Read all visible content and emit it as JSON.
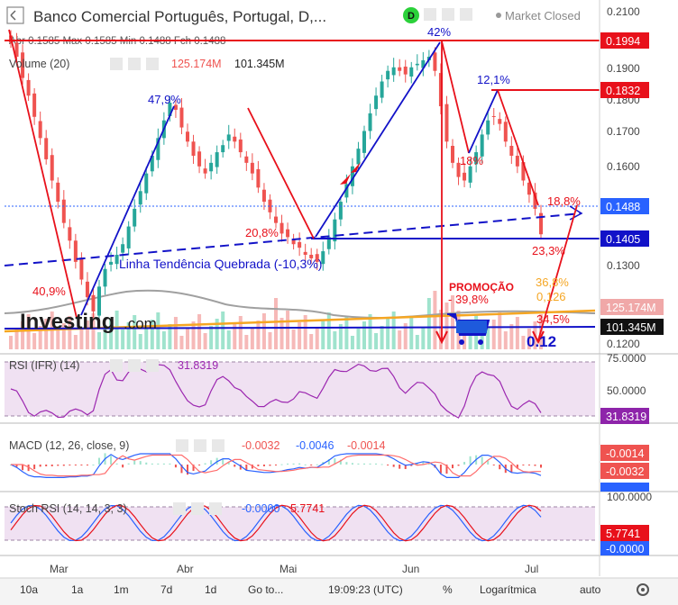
{
  "header": {
    "title": "Banco Comercial Português, Portugal, D,...",
    "interval_badge": "D",
    "market_status": "Market Closed",
    "ohlc": "Abr 0.1585  Max 0.1585  Min 0.1488  Fch 0.1488"
  },
  "volume_panel": {
    "label": "Volume (20)",
    "value1": "125.174M",
    "value2": "101.345M",
    "tag1": "125.174M",
    "tag2": "101.345M"
  },
  "rsi_panel": {
    "label": "RSI (IFR) (14)",
    "value": "31.8319",
    "tag": "31.8319",
    "ticks": [
      "75.0000",
      "50.0000"
    ]
  },
  "macd_panel": {
    "label": "MACD (12, 26, close, 9)",
    "v1": "-0.0032",
    "v2": "-0.0046",
    "v3": "-0.0014",
    "tags": [
      "-0.0014",
      "-0.0032"
    ]
  },
  "stoch_panel": {
    "label": "Stoch RSI (14, 14, 3, 3)",
    "v1": "-0.0000",
    "v2": "5.7741",
    "tags": [
      "100.0000",
      "5.7741",
      "-0.0000"
    ]
  },
  "price_axis": {
    "ticks": [
      "0.2100",
      "0.2000",
      "0.1900",
      "0.1800",
      "0.1700",
      "0.1600",
      "0.1400",
      "0.1300",
      "0.1200"
    ],
    "tags": [
      {
        "text": "0.1994",
        "color": "#e8111b"
      },
      {
        "text": "0.1832",
        "color": "#e8111b"
      },
      {
        "text": "0.1488",
        "color": "#2962ff"
      },
      {
        "text": "0.1405",
        "color": "#1212c8"
      }
    ]
  },
  "time_axis": {
    "labels": [
      "Mar",
      "Abr",
      "Mai",
      "Jun",
      "Jul"
    ]
  },
  "annotations": {
    "pct_409": "40,9%",
    "pct_479": "47,9%",
    "pct_208": "20,8%",
    "pct_42": "42%",
    "pct_121": "12,1%",
    "pct_18": "18%",
    "pct_188": "18,8%",
    "pct_233": "23,3%",
    "pct_368": "36,8%",
    "val_0126": "0,126",
    "pct_345": "34,5%",
    "promo1": "PROMOÇÃO",
    "promo2": "- 39,8%",
    "trend": "Linha Tendência Quebrada (-10,3%)",
    "target": "0.12",
    "logo_a": "Investing",
    "logo_b": ".com"
  },
  "toolbar": {
    "ranges": [
      "10a",
      "1a",
      "1m",
      "7d",
      "1d"
    ],
    "goto": "Go to...",
    "time": "19:09:23 (UTC)",
    "percent": "%",
    "log": "Logarítmica",
    "auto": "auto"
  },
  "colors": {
    "up": "#26a69a",
    "down": "#ef5350",
    "annotation_red": "#e8111b",
    "annotation_blue": "#1212c8",
    "orange": "#f5a623"
  },
  "chart_data": {
    "type": "candlestick",
    "title": "Banco Comercial Português, Portugal, D",
    "y_range": [
      0.115,
      0.213
    ],
    "x_labels": [
      "Mar",
      "Abr",
      "Mai",
      "Jun",
      "Jul"
    ],
    "closes": [
      0.203,
      0.199,
      0.193,
      0.188,
      0.182,
      0.176,
      0.17,
      0.164,
      0.158,
      0.152,
      0.147,
      0.141,
      0.136,
      0.131,
      0.127,
      0.134,
      0.139,
      0.141,
      0.143,
      0.146,
      0.151,
      0.156,
      0.161,
      0.166,
      0.171,
      0.176,
      0.181,
      0.186,
      0.184,
      0.179,
      0.175,
      0.171,
      0.168,
      0.166,
      0.169,
      0.172,
      0.174,
      0.177,
      0.175,
      0.172,
      0.169,
      0.166,
      0.162,
      0.158,
      0.155,
      0.152,
      0.149,
      0.148,
      0.146,
      0.145,
      0.143,
      0.142,
      0.141,
      0.144,
      0.148,
      0.153,
      0.158,
      0.163,
      0.168,
      0.173,
      0.178,
      0.183,
      0.188,
      0.192,
      0.195,
      0.196,
      0.195,
      0.194,
      0.196,
      0.197,
      0.198,
      0.199,
      0.195,
      0.185,
      0.175,
      0.169,
      0.165,
      0.164,
      0.168,
      0.172,
      0.177,
      0.181,
      0.182,
      0.18,
      0.175,
      0.171,
      0.168,
      0.164,
      0.16,
      0.156,
      0.1488
    ],
    "volume_ma": [
      125.174,
      101.345
    ],
    "rsi_last": 31.8319,
    "macd_last": [
      -0.0032,
      -0.0046,
      -0.0014
    ],
    "stoch_rsi_last": [
      -0.0,
      5.7741
    ]
  }
}
